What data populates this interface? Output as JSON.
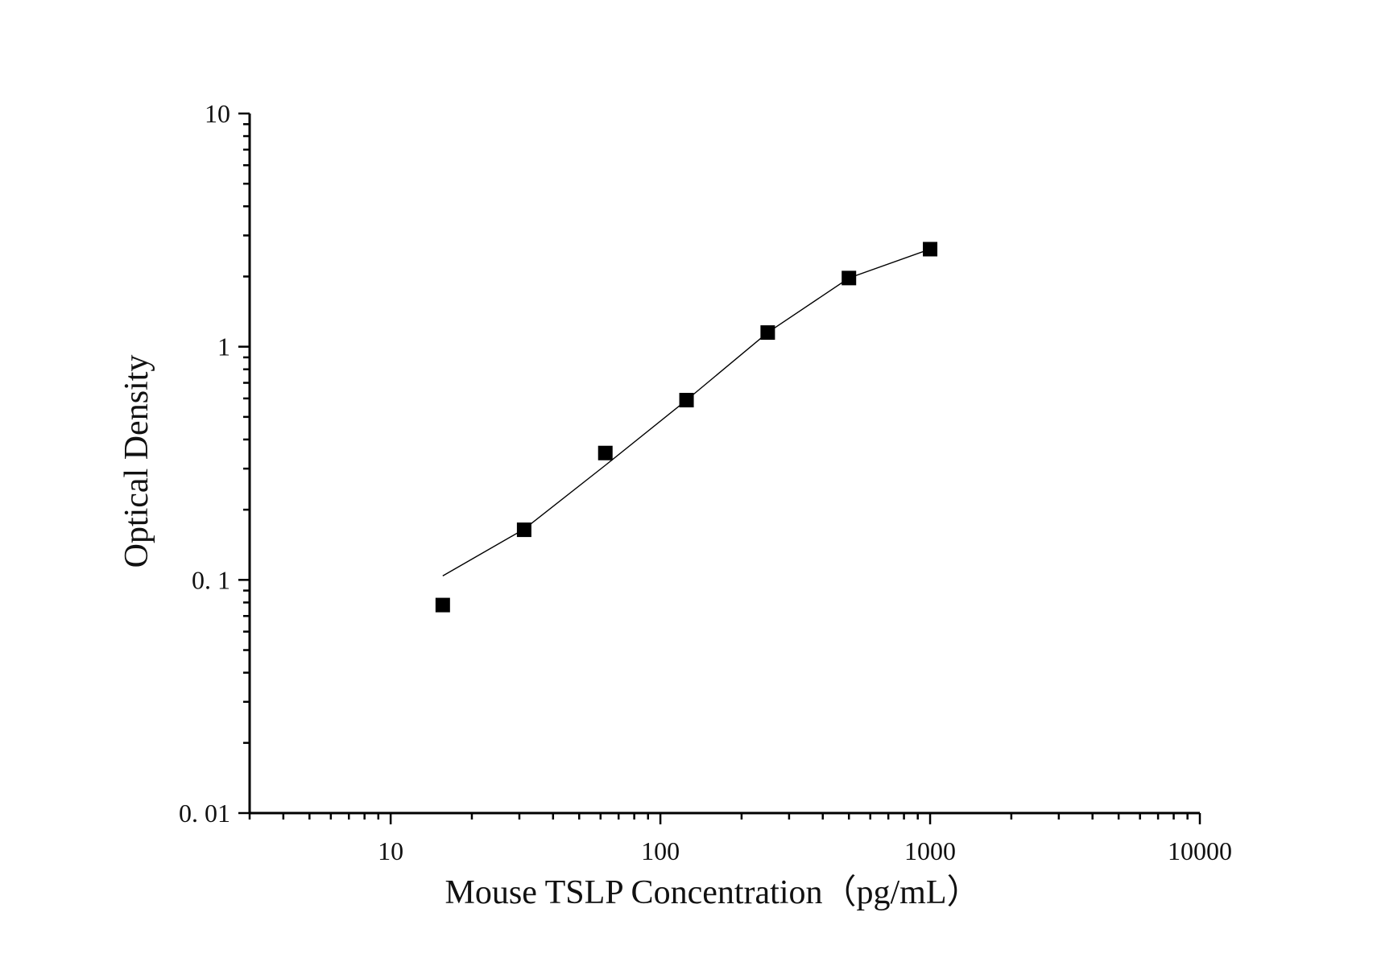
{
  "chart_data": {
    "type": "scatter",
    "title": "",
    "xlabel": "Mouse TSLP Concentration（pg/mL）",
    "ylabel": "Optical Density",
    "xscale": "log",
    "yscale": "log",
    "xlim": [
      3,
      10000
    ],
    "ylim": [
      0.01,
      10
    ],
    "grid": false,
    "legend": "none",
    "x_ticks": [
      {
        "value": 10,
        "label": "10"
      },
      {
        "value": 100,
        "label": "100"
      },
      {
        "value": 1000,
        "label": "1000"
      },
      {
        "value": 10000,
        "label": "10000"
      }
    ],
    "y_ticks": [
      {
        "value": 0.01,
        "label": "0. 01"
      },
      {
        "value": 0.1,
        "label": "0. 1"
      },
      {
        "value": 1,
        "label": "1"
      },
      {
        "value": 10,
        "label": "10"
      }
    ],
    "series": [
      {
        "x": [
          15.6,
          31.25,
          62.5,
          125,
          250,
          500,
          1000
        ],
        "y": [
          0.078,
          0.164,
          0.35,
          0.59,
          1.15,
          1.97,
          2.62
        ],
        "marker": "square",
        "color": "#000000"
      }
    ],
    "fit_curve": {
      "x": [
        15.6,
        31.25,
        62.5,
        125,
        250,
        500,
        1000
      ],
      "y": [
        0.104,
        0.165,
        0.31,
        0.59,
        1.15,
        1.97,
        2.62
      ],
      "color": "#000000"
    }
  }
}
